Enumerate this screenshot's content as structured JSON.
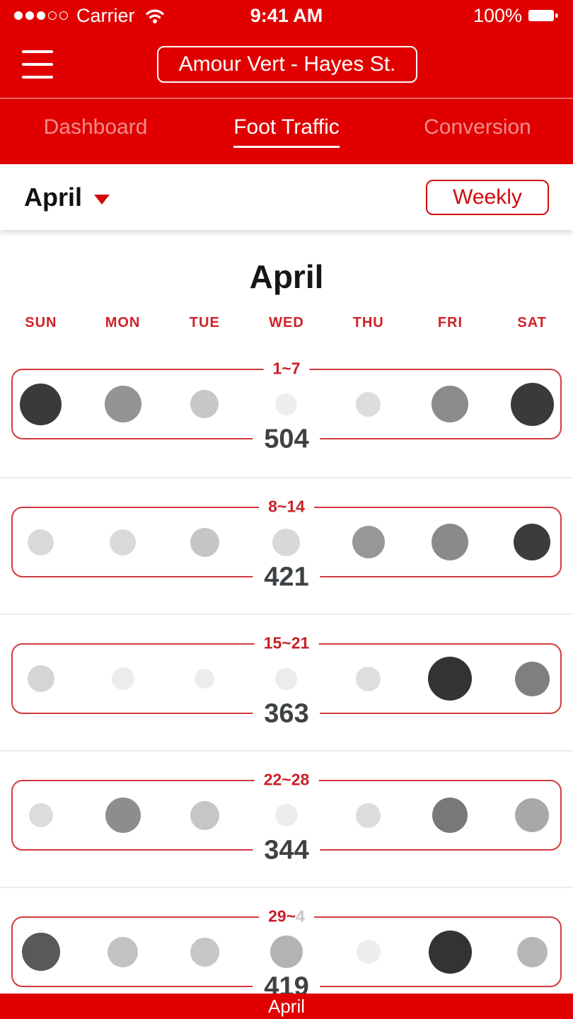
{
  "colors": {
    "chrome_red": "#e00000",
    "accent_red": "#d20a0a",
    "week_border_red": "#d23a3e",
    "week_label_red": "#ca1f27",
    "total_gray": "#3e4245"
  },
  "status_bar": {
    "signal_filled": 3,
    "signal_total": 5,
    "carrier": "Carrier",
    "time": "9:41 AM",
    "battery": "100%"
  },
  "nav": {
    "store_button": "Amour Vert - Hayes St."
  },
  "tabs": [
    {
      "label": "Dashboard",
      "active": false
    },
    {
      "label": "Foot Traffic",
      "active": true
    },
    {
      "label": "Conversion",
      "active": false
    }
  ],
  "filter_bar": {
    "month": "April",
    "view_toggle": "Weekly"
  },
  "calendar": {
    "title": "April",
    "day_headers": [
      "SUN",
      "MON",
      "TUE",
      "WED",
      "THU",
      "FRI",
      "SAT"
    ],
    "weeks": [
      {
        "range": "1~7",
        "range_next": "",
        "total": "504",
        "days": [
          {
            "size": 59,
            "shade": "#3a3a3a"
          },
          {
            "size": 52,
            "shade": "#949494"
          },
          {
            "size": 40,
            "shade": "#c7c7c7"
          },
          {
            "size": 31,
            "shade": "#eeeeee"
          },
          {
            "size": 35,
            "shade": "#dcdcdc"
          },
          {
            "size": 52,
            "shade": "#8b8b8b"
          },
          {
            "size": 61,
            "shade": "#3a3a3a"
          }
        ]
      },
      {
        "range": "8~14",
        "range_next": "",
        "total": "421",
        "days": [
          {
            "size": 37,
            "shade": "#d9d9d9"
          },
          {
            "size": 37,
            "shade": "#dadada"
          },
          {
            "size": 41,
            "shade": "#c5c5c5"
          },
          {
            "size": 39,
            "shade": "#d8d8d8"
          },
          {
            "size": 46,
            "shade": "#979797"
          },
          {
            "size": 52,
            "shade": "#8a8a8a"
          },
          {
            "size": 52,
            "shade": "#3c3c3c"
          }
        ]
      },
      {
        "range": "15~21",
        "range_next": "",
        "total": "363",
        "days": [
          {
            "size": 38,
            "shade": "#d5d5d5"
          },
          {
            "size": 32,
            "shade": "#ececec"
          },
          {
            "size": 28,
            "shade": "#ececec"
          },
          {
            "size": 31,
            "shade": "#ececec"
          },
          {
            "size": 35,
            "shade": "#dedede"
          },
          {
            "size": 62,
            "shade": "#333333"
          },
          {
            "size": 49,
            "shade": "#7f7f7f"
          }
        ]
      },
      {
        "range": "22~28",
        "range_next": "",
        "total": "344",
        "days": [
          {
            "size": 34,
            "shade": "#dcdcdc"
          },
          {
            "size": 50,
            "shade": "#8d8d8d"
          },
          {
            "size": 41,
            "shade": "#c6c6c6"
          },
          {
            "size": 32,
            "shade": "#ededed"
          },
          {
            "size": 35,
            "shade": "#dcdcdc"
          },
          {
            "size": 50,
            "shade": "#787878"
          },
          {
            "size": 48,
            "shade": "#a8a8a8"
          }
        ]
      },
      {
        "range": "29~",
        "range_next": "4",
        "total": "419",
        "days": [
          {
            "size": 54,
            "shade": "#595959"
          },
          {
            "size": 43,
            "shade": "#c2c2c2"
          },
          {
            "size": 41,
            "shade": "#c6c6c6"
          },
          {
            "size": 46,
            "shade": "#b3b3b3"
          },
          {
            "size": 34,
            "shade": "#eeeeee"
          },
          {
            "size": 61,
            "shade": "#333333"
          },
          {
            "size": 43,
            "shade": "#b7b7b7"
          }
        ]
      }
    ]
  },
  "footer": {
    "label": "April"
  }
}
